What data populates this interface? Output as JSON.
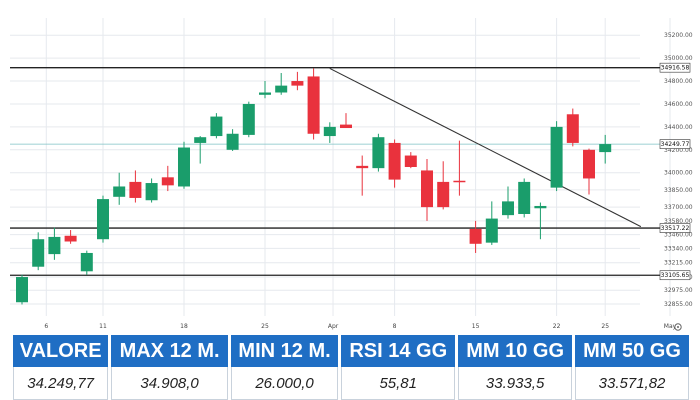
{
  "chart_data": {
    "type": "candlestick",
    "title": "",
    "ylim": [
      32750,
      35350
    ],
    "y_ticks": [
      "35200.00",
      "35000.00",
      "34800.00",
      "34600.00",
      "34400.00",
      "34200.00",
      "34000.00",
      "33850.00",
      "33700.00",
      "33580.00",
      "33460.00",
      "33340.00",
      "33215.00",
      "33090.00",
      "32975.00",
      "32855.00"
    ],
    "x_ticks": [
      "6",
      "11",
      "18",
      "25",
      "Apr",
      "8",
      "15",
      "22",
      "25",
      "May"
    ],
    "x_tick_index": [
      1.5,
      5,
      10,
      15,
      19.2,
      23,
      28,
      33,
      36,
      40
    ],
    "candles": [
      {
        "o": 32870,
        "h": 33110,
        "l": 32850,
        "c": 33090
      },
      {
        "o": 33180,
        "h": 33480,
        "l": 33150,
        "c": 33420
      },
      {
        "o": 33290,
        "h": 33520,
        "l": 33240,
        "c": 33440
      },
      {
        "o": 33450,
        "h": 33500,
        "l": 33380,
        "c": 33400
      },
      {
        "o": 33140,
        "h": 33320,
        "l": 33110,
        "c": 33300
      },
      {
        "o": 33420,
        "h": 33800,
        "l": 33390,
        "c": 33770
      },
      {
        "o": 33790,
        "h": 34000,
        "l": 33720,
        "c": 33880
      },
      {
        "o": 33920,
        "h": 34020,
        "l": 33740,
        "c": 33780
      },
      {
        "o": 33760,
        "h": 33950,
        "l": 33740,
        "c": 33910
      },
      {
        "o": 33960,
        "h": 34060,
        "l": 33840,
        "c": 33890
      },
      {
        "o": 33880,
        "h": 34270,
        "l": 33860,
        "c": 34220
      },
      {
        "o": 34260,
        "h": 34320,
        "l": 34080,
        "c": 34310
      },
      {
        "o": 34320,
        "h": 34520,
        "l": 34300,
        "c": 34490
      },
      {
        "o": 34200,
        "h": 34380,
        "l": 34190,
        "c": 34340
      },
      {
        "o": 34330,
        "h": 34620,
        "l": 34310,
        "c": 34600
      },
      {
        "o": 34680,
        "h": 34800,
        "l": 34650,
        "c": 34700
      },
      {
        "o": 34700,
        "h": 34870,
        "l": 34680,
        "c": 34760
      },
      {
        "o": 34800,
        "h": 34880,
        "l": 34720,
        "c": 34760
      },
      {
        "o": 34840,
        "h": 34910,
        "l": 34290,
        "c": 34340
      },
      {
        "o": 34320,
        "h": 34440,
        "l": 34260,
        "c": 34400
      },
      {
        "o": 34420,
        "h": 34520,
        "l": 34400,
        "c": 34390
      },
      {
        "o": 34060,
        "h": 34150,
        "l": 33800,
        "c": 34040
      },
      {
        "o": 34040,
        "h": 34340,
        "l": 34010,
        "c": 34310
      },
      {
        "o": 34260,
        "h": 34290,
        "l": 33870,
        "c": 33940
      },
      {
        "o": 34150,
        "h": 34180,
        "l": 34040,
        "c": 34050
      },
      {
        "o": 34020,
        "h": 34120,
        "l": 33580,
        "c": 33700
      },
      {
        "o": 33920,
        "h": 34100,
        "l": 33680,
        "c": 33700
      },
      {
        "o": 33930,
        "h": 34280,
        "l": 33800,
        "c": 33920
      },
      {
        "o": 33510,
        "h": 33580,
        "l": 33300,
        "c": 33380
      },
      {
        "o": 33390,
        "h": 33750,
        "l": 33370,
        "c": 33600
      },
      {
        "o": 33630,
        "h": 33880,
        "l": 33600,
        "c": 33750
      },
      {
        "o": 33640,
        "h": 33950,
        "l": 33610,
        "c": 33920
      },
      {
        "o": 33690,
        "h": 33740,
        "l": 33420,
        "c": 33710
      },
      {
        "o": 33870,
        "h": 34450,
        "l": 33840,
        "c": 34400
      },
      {
        "o": 34510,
        "h": 34560,
        "l": 34230,
        "c": 34260
      },
      {
        "o": 34200,
        "h": 34210,
        "l": 33810,
        "c": 33950
      },
      {
        "o": 34180,
        "h": 34330,
        "l": 34080,
        "c": 34250
      }
    ],
    "levels": [
      {
        "value": 34916.58,
        "label": "34916.58"
      },
      {
        "value": 33517.22,
        "label": "33517.22"
      },
      {
        "value": 33105.65,
        "label": "33105.65"
      }
    ],
    "current": {
      "value": 34249.77,
      "label": "34249.77"
    },
    "trendline": {
      "from_index": 19,
      "from_value": 34910,
      "to_index": 38.2,
      "to_value": 33530
    },
    "colors": {
      "up": "#1a9d6b",
      "down": "#e9323d",
      "level": "#222222",
      "current": "#7ec2c4",
      "grid": "#e6e9ee"
    }
  },
  "stats": {
    "headers": [
      "VALORE",
      "MAX 12 M.",
      "MIN 12 M.",
      "RSI 14 GG",
      "MM 10 GG",
      "MM 50 GG"
    ],
    "values": [
      "34.249,77",
      "34.908,0",
      "26.000,0",
      "55,81",
      "33.933,5",
      "33.571,82"
    ],
    "header_bg": "#1f6ec4"
  }
}
